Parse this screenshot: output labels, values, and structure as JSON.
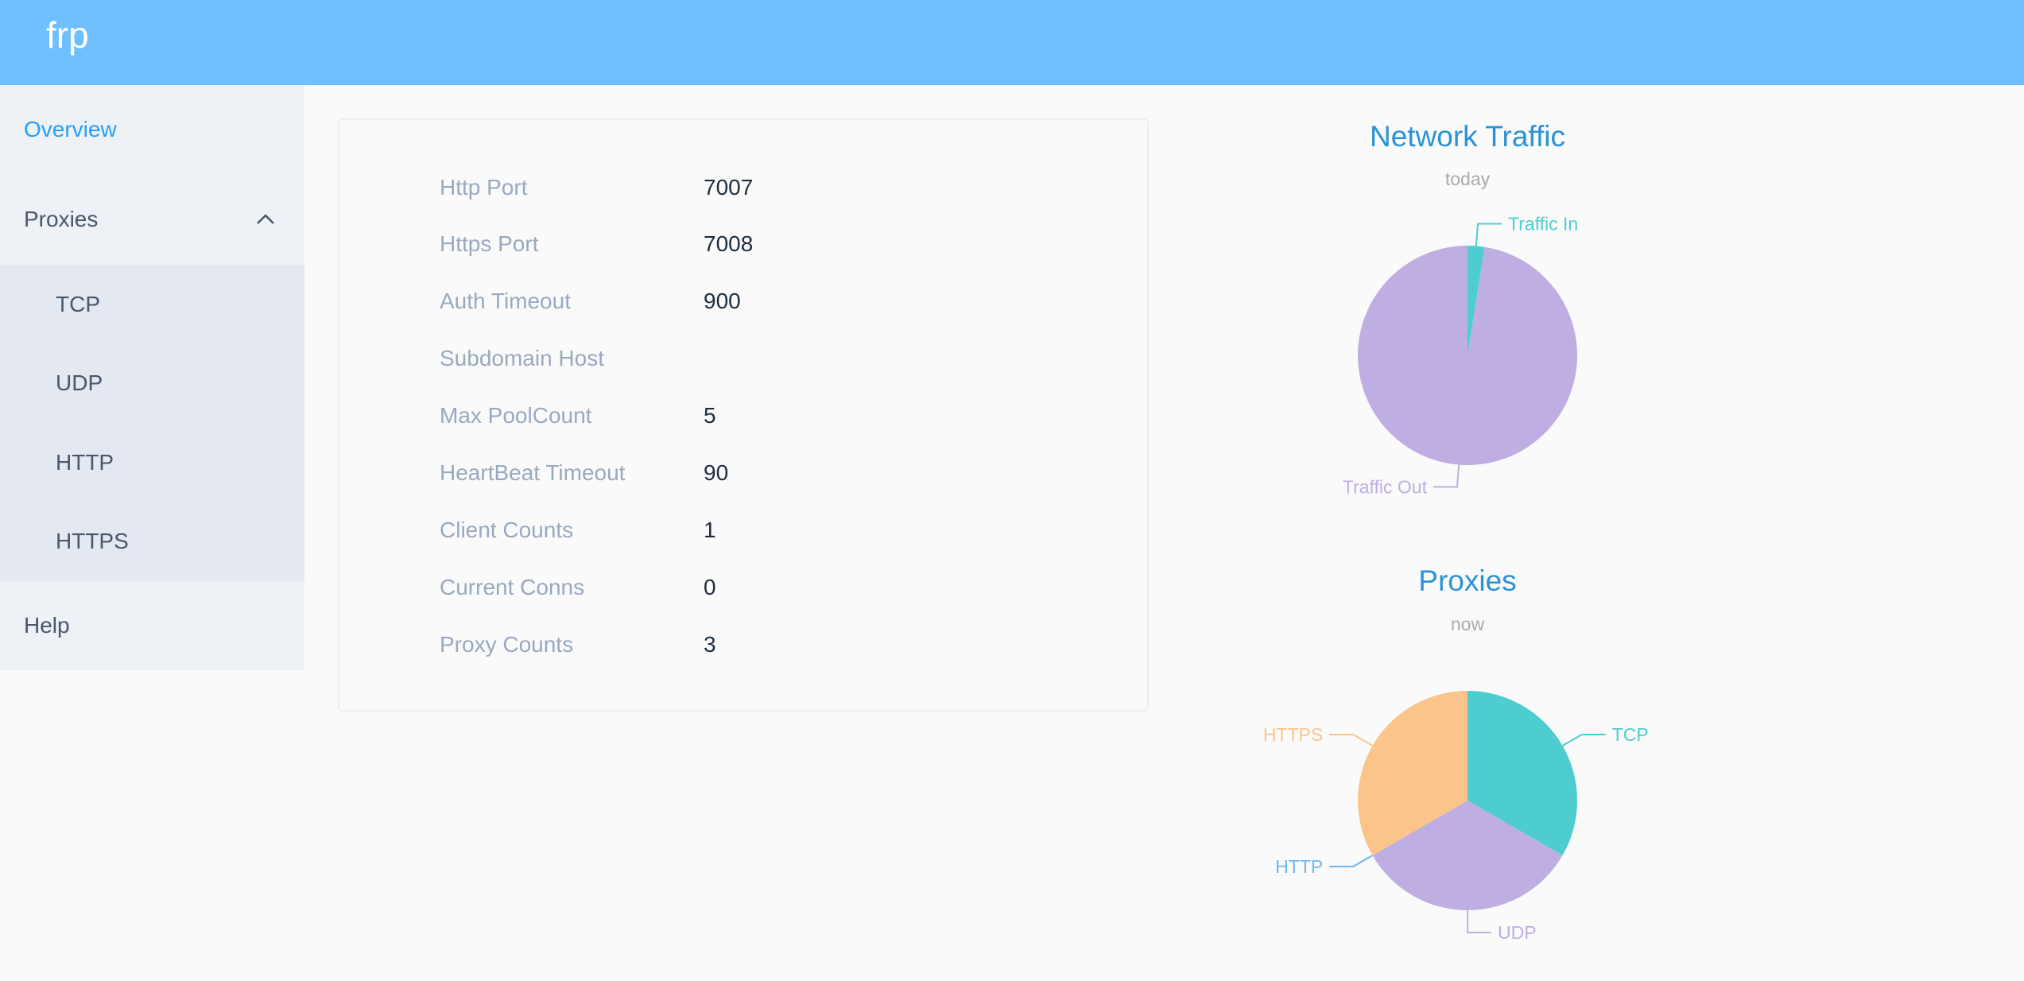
{
  "header": {
    "logo": "frp",
    "color": "#6fbfff"
  },
  "sidebar": {
    "overview": "Overview",
    "proxies": "Proxies",
    "proxy_items": [
      "TCP",
      "UDP",
      "HTTP",
      "HTTPS"
    ],
    "help": "Help",
    "active_color": "#20a0ff"
  },
  "server_info": [
    {
      "label": "Http Port",
      "value": "7007"
    },
    {
      "label": "Https Port",
      "value": "7008"
    },
    {
      "label": "Auth Timeout",
      "value": "900"
    },
    {
      "label": "Subdomain Host",
      "value": ""
    },
    {
      "label": "Max PoolCount",
      "value": "5"
    },
    {
      "label": "HeartBeat Timeout",
      "value": "90"
    },
    {
      "label": "Client Counts",
      "value": "1"
    },
    {
      "label": "Current Conns",
      "value": "0"
    },
    {
      "label": "Proxy Counts",
      "value": "3"
    }
  ],
  "chart_data": [
    {
      "type": "pie",
      "title": "Network Traffic",
      "subtitle": "today",
      "categories": [
        "Traffic In",
        "Traffic Out"
      ],
      "values": [
        2.5,
        97.5
      ],
      "colors": [
        "#4ecdd1",
        "#bfaee2"
      ]
    },
    {
      "type": "pie",
      "title": "Proxies",
      "subtitle": "now",
      "categories": [
        "TCP",
        "UDP",
        "HTTP",
        "HTTPS"
      ],
      "values": [
        1,
        1,
        0,
        1
      ],
      "colors": [
        "#4ecdd1",
        "#bfaee2",
        "#6ab7f3",
        "#fbc58a"
      ]
    }
  ]
}
